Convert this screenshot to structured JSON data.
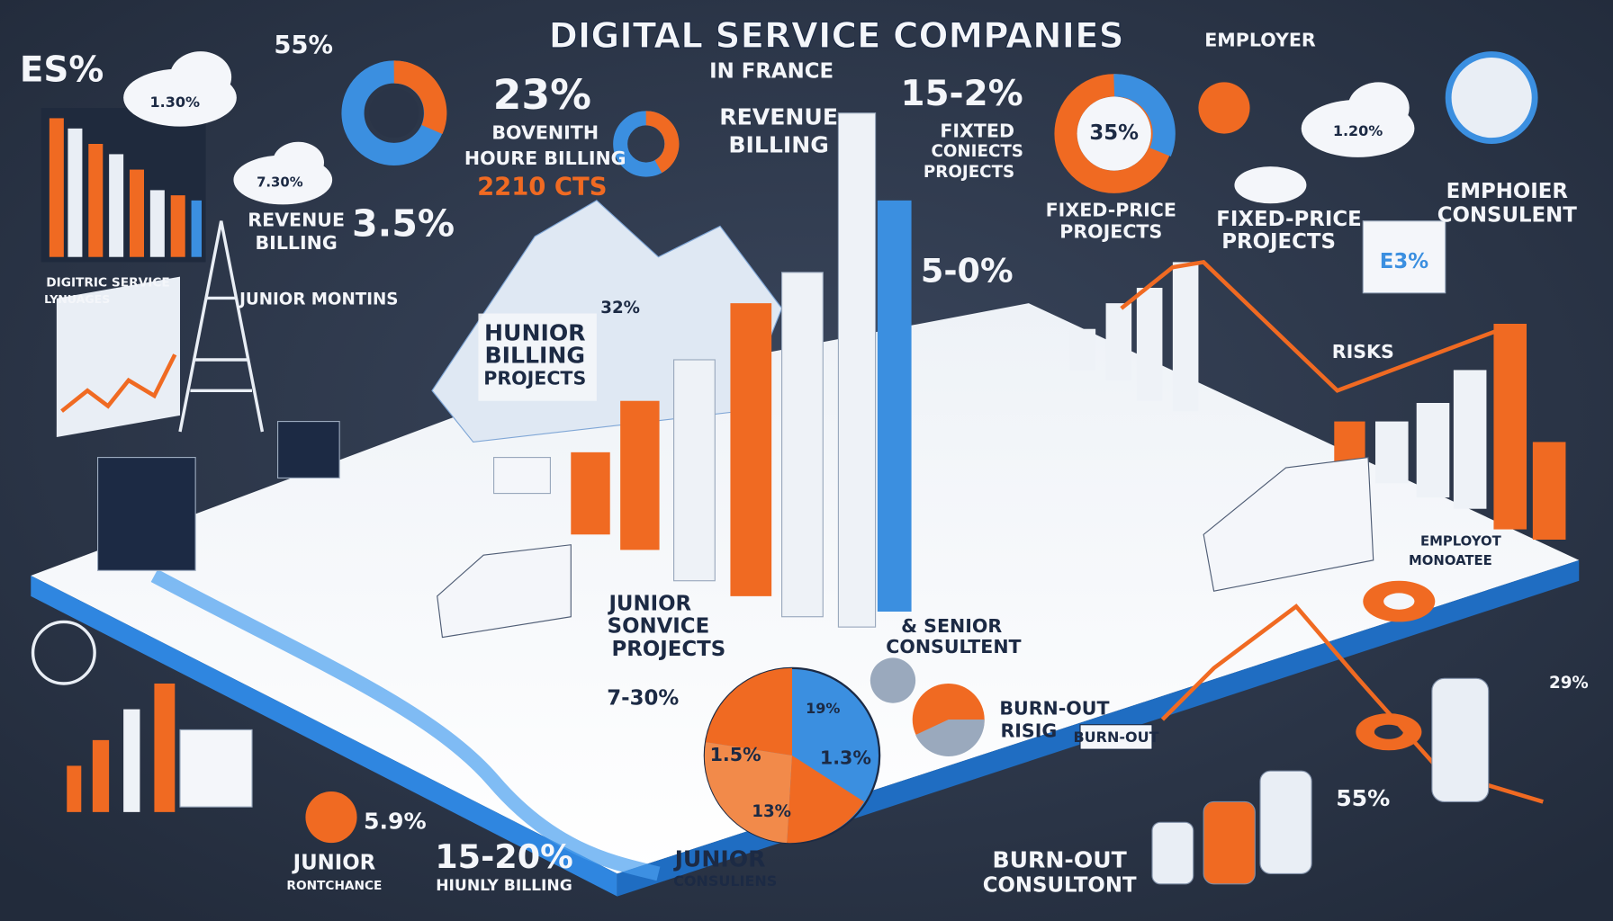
{
  "header": {
    "title": "DIGITAL SERVICE COMPANIES",
    "subtitle": "IN FRANCE"
  },
  "labels": [
    {
      "text": "ES%"
    },
    {
      "text": "55%"
    },
    {
      "text": "1.30%"
    },
    {
      "text": "7.30%"
    },
    {
      "text": "23%"
    },
    {
      "text": "BOVENITH"
    },
    {
      "text": "HOURE BILLING"
    },
    {
      "text": "2210 CTS"
    },
    {
      "text": "REVENUE"
    },
    {
      "text": "BILLING"
    },
    {
      "text": "15-2%"
    },
    {
      "text": "FIXTED"
    },
    {
      "text": "CONIECTS"
    },
    {
      "text": "PROJECTS"
    },
    {
      "text": "EMPLOYER"
    },
    {
      "text": "35%"
    },
    {
      "text": "FIXED-PRICE"
    },
    {
      "text": "PROJECTS"
    },
    {
      "text": "FIXED-PRICE"
    },
    {
      "text": "PROJECTS"
    },
    {
      "text": "1.20%"
    },
    {
      "text": "EMPHOIER"
    },
    {
      "text": "CONSULENT"
    },
    {
      "text": "REVENUE"
    },
    {
      "text": "BILLING"
    },
    {
      "text": "3.5%"
    },
    {
      "text": "DIGITRIC SERVICE"
    },
    {
      "text": "LYNUAGES"
    },
    {
      "text": "JUNIOR MONTINS"
    },
    {
      "text": "32%"
    },
    {
      "text": "HUNIOR"
    },
    {
      "text": "BILLING"
    },
    {
      "text": "PROJECTS"
    },
    {
      "text": "5-0%"
    },
    {
      "text": "E3%"
    },
    {
      "text": "RISKS"
    },
    {
      "text": "JUNIOR"
    },
    {
      "text": "SONVICE"
    },
    {
      "text": "PROJECTS"
    },
    {
      "text": "7-30%"
    },
    {
      "text": "& SENIOR"
    },
    {
      "text": "CONSULTENT"
    },
    {
      "text": "BURN-OUT"
    },
    {
      "text": "RISIG"
    },
    {
      "text": "BURN-OUT"
    },
    {
      "text": "1.5%"
    },
    {
      "text": "1.3%"
    },
    {
      "text": "13%"
    },
    {
      "text": "19%"
    },
    {
      "text": "5.9%"
    },
    {
      "text": "JUNIOR"
    },
    {
      "text": "RONTCHANCE"
    },
    {
      "text": "15-20%"
    },
    {
      "text": "HIUNLY BILLING"
    },
    {
      "text": "JUNIOR"
    },
    {
      "text": "CONSULIENS"
    },
    {
      "text": "BURN-OUT"
    },
    {
      "text": "CONSULTONT"
    },
    {
      "text": "55%"
    },
    {
      "text": "EMPLOYOT"
    },
    {
      "text": "MONOATEE"
    },
    {
      "text": "29%"
    }
  ]
}
